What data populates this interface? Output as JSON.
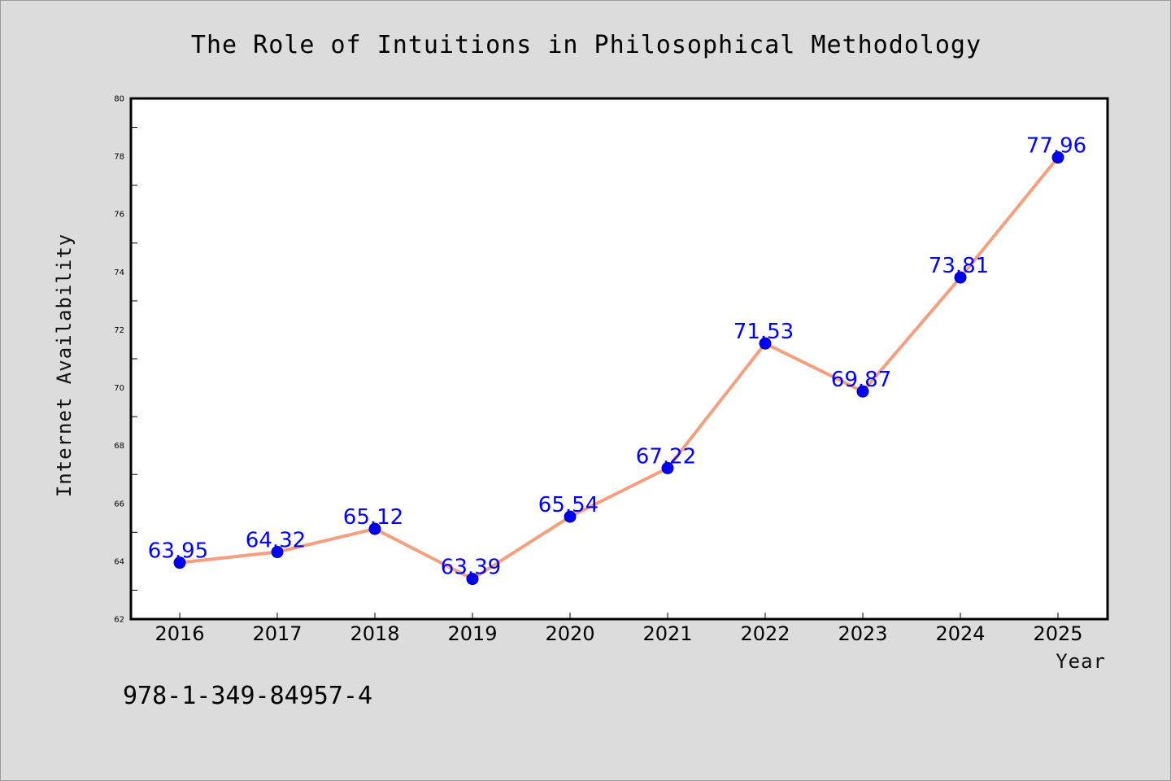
{
  "chart_data": {
    "type": "line",
    "title": "The Role of Intuitions in Philosophical Methodology",
    "xlabel": "Year",
    "ylabel": "Internet Availability",
    "categories": [
      "2016",
      "2017",
      "2018",
      "2019",
      "2020",
      "2021",
      "2022",
      "2023",
      "2024",
      "2025"
    ],
    "series": [
      {
        "values": [
          63.95,
          64.32,
          65.12,
          63.39,
          65.54,
          67.22,
          71.53,
          69.87,
          73.81,
          77.96
        ],
        "labels": [
          "63.95",
          "64.32",
          "65.12",
          "63.39",
          "65.54",
          "67.22",
          "71.53",
          "69.87",
          "73.81",
          "77.96"
        ],
        "line_color": "#f4a07e",
        "marker_color": "#0000ff"
      }
    ],
    "ylim": [
      62,
      80
    ],
    "yticks": [
      "62",
      "64",
      "66",
      "68",
      "70",
      "72",
      "74",
      "76",
      "78",
      "80"
    ],
    "grid": false,
    "legend": "none",
    "data_label_color": "#0000ff"
  },
  "annotation": {
    "isbn": "978-1-349-84957-4"
  },
  "colors": {
    "background": "#dcdcdc",
    "plot_area": "#ffffff",
    "frame": "#000000"
  }
}
